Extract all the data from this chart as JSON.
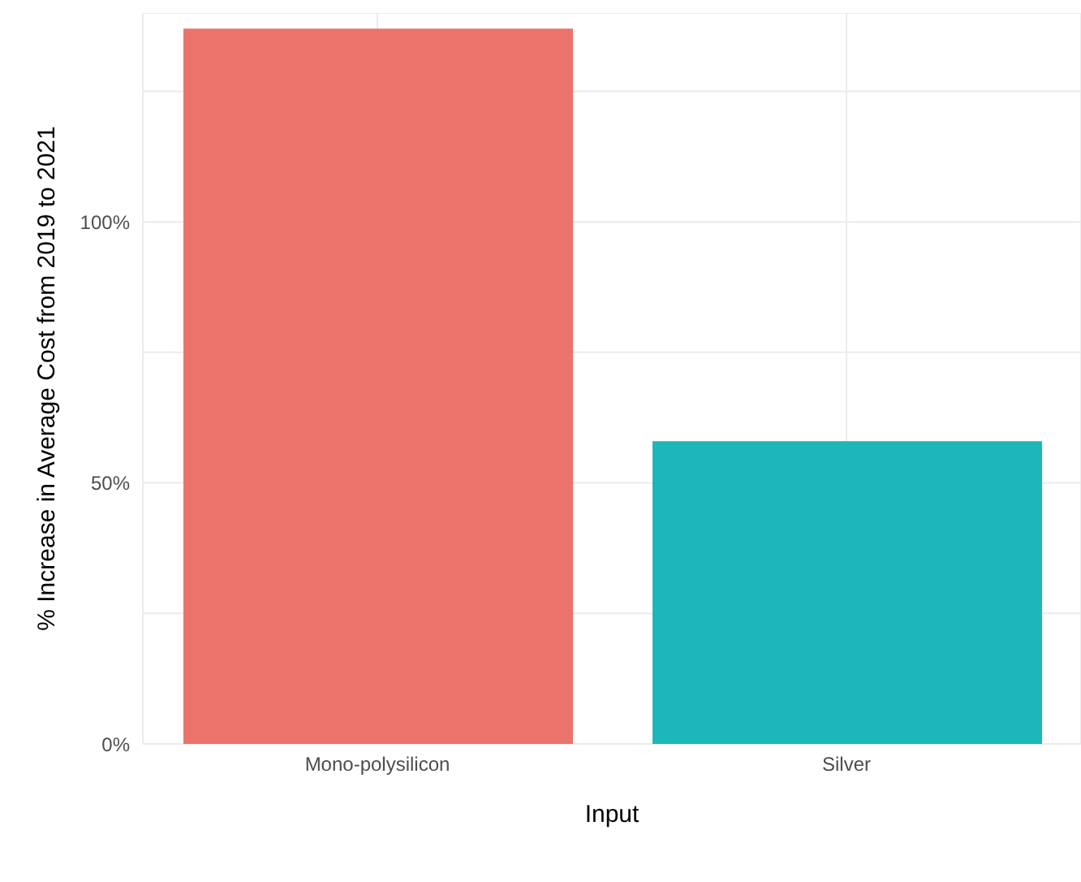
{
  "chart_data": {
    "type": "bar",
    "xlabel": "Input",
    "ylabel": "% Increase in Average Cost from 2019 to 2021",
    "categories": [
      "Mono-polysilicon",
      "Silver"
    ],
    "values": [
      137,
      58
    ],
    "colors": [
      "#eb736b",
      "#1bb7b9"
    ],
    "ylim": [
      0,
      140
    ],
    "yticks": [
      {
        "value": 0,
        "label": "0%"
      },
      {
        "value": 25,
        "label": null
      },
      {
        "value": 50,
        "label": "50%"
      },
      {
        "value": 75,
        "label": null
      },
      {
        "value": 100,
        "label": "100%"
      },
      {
        "value": 125,
        "label": null
      }
    ],
    "grid": true,
    "legend": false
  }
}
